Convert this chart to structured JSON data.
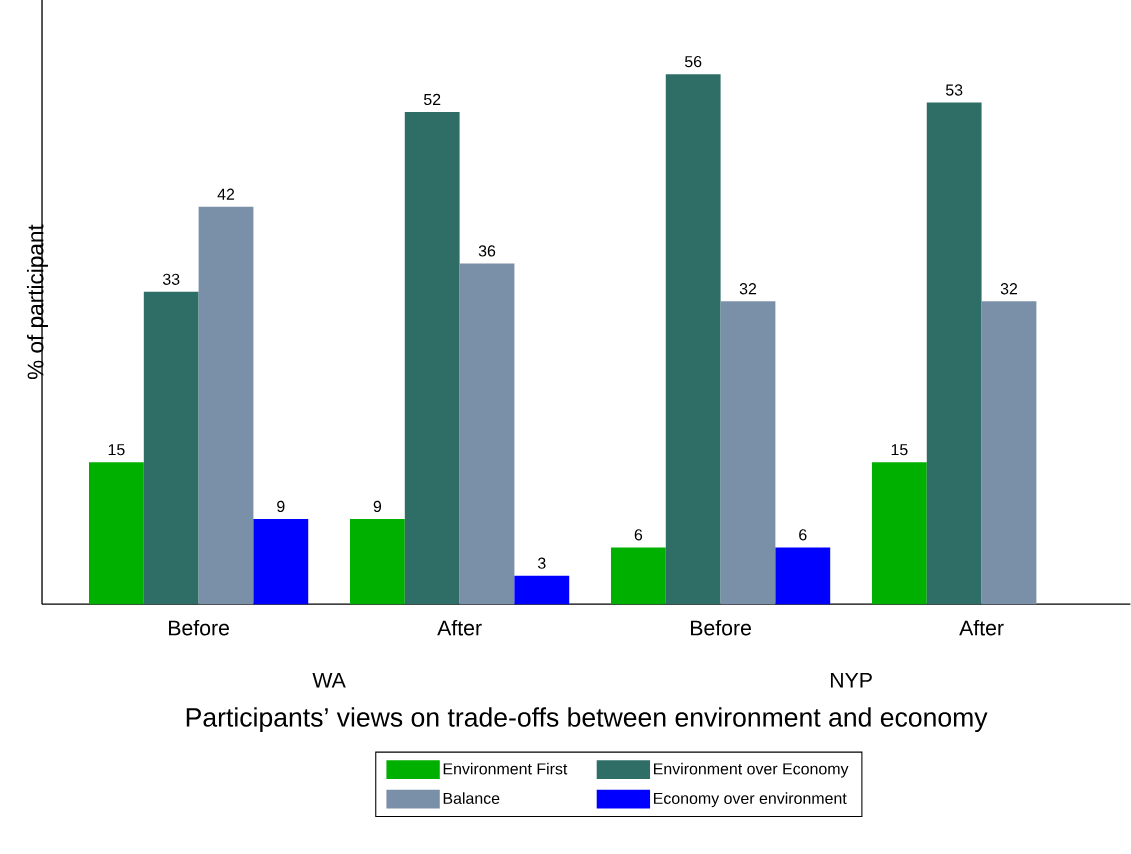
{
  "chart_data": {
    "type": "bar",
    "xlabel": "Participants’ views on trade-offs between environment and economy",
    "ylabel": "% of participant",
    "categories": [
      "Before",
      "After",
      "Before",
      "After"
    ],
    "series": [
      {
        "name": "Environment First",
        "color": "#00b000",
        "values": [
          15,
          9,
          6,
          15
        ]
      },
      {
        "name": "Environment over Economy",
        "color": "#2e6e66",
        "values": [
          33,
          52,
          56,
          53
        ]
      },
      {
        "name": "Balance",
        "color": "#7a90a8",
        "values": [
          42,
          36,
          32,
          32
        ]
      },
      {
        "name": "Economy over environment",
        "color": "#0000ff",
        "values": [
          9,
          3,
          6,
          null
        ]
      }
    ],
    "annotations": [
      "WA",
      "NYP"
    ],
    "tick_labels": "x",
    "data_labels": true,
    "legend": "bottom",
    "grid": false
  }
}
